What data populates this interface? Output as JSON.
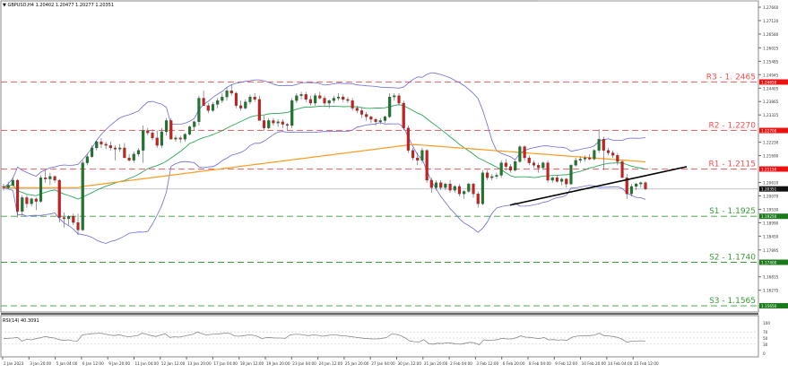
{
  "header": {
    "symbol_info": "GBPUSD,H4  1.20402 1.20477 1.20277 1.20351"
  },
  "rsi_panel": {
    "label": "RSI(14) 40.3091",
    "axis_ticks": [
      "100",
      "70",
      "50",
      "30",
      "0"
    ]
  },
  "colors": {
    "bull_candle": "#1a7a2a",
    "bear_candle": "#d21b1b",
    "wick": "#555555",
    "resistance": "#ff4d4d",
    "support": "#3a9a3a",
    "bollinger": "#6b6bdc",
    "ma_fast": "#2aa65a",
    "ma_slow": "#ff9a1f",
    "trendline": "#000000",
    "rsi_line": "#888888"
  },
  "chart_data": {
    "type": "candlestick",
    "title": "GBPUSD,H4",
    "ohlc_header": {
      "open": 1.20402,
      "high": 1.20477,
      "low": 1.20277,
      "close": 1.20351
    },
    "current_price": 1.20351,
    "price_axis_ticks": [
      "1.27660",
      "1.27120",
      "1.26580",
      "1.26025",
      "1.25485",
      "1.24945",
      "1.24405",
      "1.23865",
      "1.23325",
      "1.22230",
      "1.21690",
      "1.20610",
      "1.20070",
      "1.19530",
      "1.18990",
      "1.18450",
      "1.17895",
      "1.16815",
      "1.16275"
    ],
    "ylim": [
      1.154,
      1.279
    ],
    "time_axis_ticks": [
      "2 Jan 2023",
      "3 Jan 20:00",
      "5 Jan 04:00",
      "6 Jan 12:00",
      "9 Jan 20:00",
      "11 Jan 04:00",
      "12 Jan 12:00",
      "13 Jan 20:00",
      "17 Jan 04:00",
      "18 Jan 12:00",
      "19 Jan 20:00",
      "23 Jan 04:00",
      "24 Jan 12:00",
      "25 Jan 20:00",
      "27 Jan 04:00",
      "30 Jan 12:00",
      "31 Jan 20:00",
      "2 Feb 04:00",
      "3 Feb 12:00",
      "6 Feb 20:00",
      "8 Feb 04:00",
      "9 Feb 12:00",
      "10 Feb 20:00",
      "14 Feb 04:00",
      "15 Feb 12:00"
    ],
    "levels": [
      {
        "name": "R3",
        "label": "R3 - 1. 2465",
        "value": 1.2465,
        "axis_tag": "1.24650",
        "kind": "resistance"
      },
      {
        "name": "R2",
        "label": "R2 - 1.2270",
        "value": 1.227,
        "axis_tag": "1.22700",
        "kind": "resistance"
      },
      {
        "name": "R1",
        "label": "R1 - 1.2115",
        "value": 1.2115,
        "axis_tag": "1.21150",
        "kind": "resistance"
      },
      {
        "name": "S1",
        "label": "S1 - 1.1925",
        "value": 1.1925,
        "axis_tag": "1.19250",
        "kind": "support"
      },
      {
        "name": "S2",
        "label": "S2 - 1.1740",
        "value": 1.174,
        "axis_tag": "1.17400",
        "kind": "support"
      },
      {
        "name": "S3",
        "label": "S3 - 1.1565",
        "value": 1.1565,
        "axis_tag": "1.15650",
        "kind": "support"
      }
    ],
    "price_path": [
      [
        1.2045,
        1.2055,
        1.203,
        1.204
      ],
      [
        1.204,
        1.2065,
        1.2035,
        1.205
      ],
      [
        1.205,
        1.208,
        1.2045,
        1.207
      ],
      [
        1.207,
        1.2075,
        1.192,
        1.1945
      ],
      [
        1.1945,
        1.201,
        1.193,
        1.2
      ],
      [
        1.2,
        1.201,
        1.196,
        1.1975
      ],
      [
        1.1975,
        1.2,
        1.1965,
        1.1995
      ],
      [
        1.1995,
        1.2,
        1.195,
        1.1985
      ],
      [
        1.1985,
        1.209,
        1.198,
        1.208
      ],
      [
        1.208,
        1.211,
        1.206,
        1.2075
      ],
      [
        1.2075,
        1.21,
        1.205,
        1.2085
      ],
      [
        1.2085,
        1.209,
        1.206,
        1.207
      ],
      [
        1.207,
        1.2075,
        1.19,
        1.192
      ],
      [
        1.192,
        1.194,
        1.188,
        1.1915
      ],
      [
        1.1915,
        1.193,
        1.189,
        1.1925
      ],
      [
        1.1925,
        1.1935,
        1.189,
        1.19
      ],
      [
        1.19,
        1.1935,
        1.185,
        1.187
      ],
      [
        1.187,
        1.215,
        1.1865,
        1.214
      ],
      [
        1.214,
        1.2175,
        1.213,
        1.2165
      ],
      [
        1.2165,
        1.221,
        1.216,
        1.22
      ],
      [
        1.22,
        1.223,
        1.219,
        1.2225
      ],
      [
        1.2225,
        1.224,
        1.22,
        1.2215
      ],
      [
        1.2215,
        1.2225,
        1.2195,
        1.221
      ],
      [
        1.221,
        1.2225,
        1.219,
        1.22
      ],
      [
        1.22,
        1.221,
        1.215,
        1.2195
      ],
      [
        1.2195,
        1.2215,
        1.2185,
        1.22
      ],
      [
        1.22,
        1.222,
        1.218,
        1.216
      ],
      [
        1.216,
        1.2175,
        1.2145,
        1.215
      ],
      [
        1.215,
        1.2185,
        1.214,
        1.2175
      ],
      [
        1.2175,
        1.22,
        1.2165,
        1.219
      ],
      [
        1.219,
        1.229,
        1.214,
        1.227
      ],
      [
        1.227,
        1.228,
        1.225,
        1.226
      ],
      [
        1.226,
        1.2275,
        1.223,
        1.224
      ],
      [
        1.224,
        1.227,
        1.22,
        1.221
      ],
      [
        1.221,
        1.228,
        1.22,
        1.2265
      ],
      [
        1.2265,
        1.232,
        1.225,
        1.231
      ],
      [
        1.231,
        1.232,
        1.227,
        1.2235
      ],
      [
        1.2235,
        1.225,
        1.2225,
        1.224
      ],
      [
        1.224,
        1.225,
        1.222,
        1.2235
      ],
      [
        1.2235,
        1.226,
        1.2225,
        1.2255
      ],
      [
        1.2255,
        1.229,
        1.225,
        1.2285
      ],
      [
        1.2285,
        1.231,
        1.227,
        1.2305
      ],
      [
        1.2305,
        1.241,
        1.229,
        1.24
      ],
      [
        1.24,
        1.243,
        1.2385,
        1.237
      ],
      [
        1.237,
        1.238,
        1.234,
        1.235
      ],
      [
        1.235,
        1.2385,
        1.2345,
        1.2375
      ],
      [
        1.2375,
        1.24,
        1.236,
        1.239
      ],
      [
        1.239,
        1.242,
        1.238,
        1.2405
      ],
      [
        1.2405,
        1.2445,
        1.239,
        1.243
      ],
      [
        1.243,
        1.2455,
        1.241,
        1.242
      ],
      [
        1.242,
        1.2425,
        1.236,
        1.237
      ],
      [
        1.237,
        1.239,
        1.235,
        1.236
      ],
      [
        1.236,
        1.2395,
        1.2355,
        1.2385
      ],
      [
        1.2385,
        1.2415,
        1.2375,
        1.2405
      ],
      [
        1.2405,
        1.242,
        1.2385,
        1.2395
      ],
      [
        1.2395,
        1.241,
        1.234,
        1.231
      ],
      [
        1.231,
        1.233,
        1.227,
        1.228
      ],
      [
        1.228,
        1.232,
        1.2275,
        1.231
      ],
      [
        1.231,
        1.232,
        1.229,
        1.23
      ],
      [
        1.23,
        1.2315,
        1.2285,
        1.2305
      ],
      [
        1.2305,
        1.2315,
        1.228,
        1.2295
      ],
      [
        1.2295,
        1.23,
        1.227,
        1.229
      ],
      [
        1.229,
        1.24,
        1.228,
        1.239
      ],
      [
        1.239,
        1.242,
        1.238,
        1.241
      ],
      [
        1.241,
        1.2425,
        1.2395,
        1.2415
      ],
      [
        1.2415,
        1.2425,
        1.2385,
        1.2395
      ],
      [
        1.2395,
        1.241,
        1.237,
        1.238
      ],
      [
        1.238,
        1.242,
        1.237,
        1.241
      ],
      [
        1.241,
        1.2425,
        1.2395,
        1.24
      ],
      [
        1.24,
        1.241,
        1.237,
        1.238
      ],
      [
        1.238,
        1.2395,
        1.236,
        1.239
      ],
      [
        1.239,
        1.241,
        1.238,
        1.24
      ],
      [
        1.24,
        1.242,
        1.239,
        1.2405
      ],
      [
        1.2405,
        1.2415,
        1.2385,
        1.2395
      ],
      [
        1.2395,
        1.2405,
        1.238,
        1.239
      ],
      [
        1.239,
        1.24,
        1.235,
        1.236
      ],
      [
        1.236,
        1.237,
        1.234,
        1.235
      ],
      [
        1.235,
        1.236,
        1.232,
        1.2335
      ],
      [
        1.2335,
        1.2345,
        1.231,
        1.2325
      ],
      [
        1.2325,
        1.233,
        1.23,
        1.2315
      ],
      [
        1.2315,
        1.232,
        1.229,
        1.2305
      ],
      [
        1.2305,
        1.232,
        1.2295,
        1.231
      ],
      [
        1.231,
        1.233,
        1.23,
        1.2325
      ],
      [
        1.2325,
        1.242,
        1.232,
        1.2405
      ],
      [
        1.2405,
        1.242,
        1.239,
        1.241
      ],
      [
        1.241,
        1.242,
        1.237,
        1.238
      ],
      [
        1.238,
        1.239,
        1.227,
        1.228
      ],
      [
        1.228,
        1.229,
        1.218,
        1.219
      ],
      [
        1.219,
        1.22,
        1.215,
        1.216
      ],
      [
        1.216,
        1.218,
        1.213,
        1.215
      ],
      [
        1.215,
        1.22,
        1.214,
        1.219
      ],
      [
        1.219,
        1.2195,
        1.206,
        1.207
      ],
      [
        1.207,
        1.208,
        1.202,
        1.204
      ],
      [
        1.204,
        1.207,
        1.203,
        1.206
      ],
      [
        1.206,
        1.207,
        1.203,
        1.204
      ],
      [
        1.204,
        1.206,
        1.203,
        1.2055
      ],
      [
        1.2055,
        1.207,
        1.202,
        1.203
      ],
      [
        1.203,
        1.205,
        1.202,
        1.2045
      ],
      [
        1.2045,
        1.2055,
        1.2005,
        1.2015
      ],
      [
        1.2015,
        1.203,
        1.1995,
        1.2025
      ],
      [
        1.2025,
        1.206,
        1.202,
        1.2055
      ],
      [
        1.2055,
        1.206,
        1.2,
        1.2015
      ],
      [
        1.2015,
        1.2025,
        1.196,
        1.1975
      ],
      [
        1.1975,
        1.211,
        1.197,
        1.21
      ],
      [
        1.21,
        1.211,
        1.207,
        1.208
      ],
      [
        1.208,
        1.2095,
        1.207,
        1.2085
      ],
      [
        1.2085,
        1.21,
        1.2075,
        1.209
      ],
      [
        1.209,
        1.215,
        1.208,
        1.214
      ],
      [
        1.214,
        1.2155,
        1.211,
        1.2125
      ],
      [
        1.2125,
        1.2135,
        1.21,
        1.211
      ],
      [
        1.211,
        1.215,
        1.2105,
        1.2145
      ],
      [
        1.2145,
        1.221,
        1.214,
        1.2205
      ],
      [
        1.2205,
        1.221,
        1.215,
        1.216
      ],
      [
        1.216,
        1.217,
        1.213,
        1.214
      ],
      [
        1.214,
        1.215,
        1.212,
        1.213
      ],
      [
        1.213,
        1.214,
        1.21,
        1.212
      ],
      [
        1.212,
        1.2145,
        1.211,
        1.214
      ],
      [
        1.214,
        1.215,
        1.206,
        1.207
      ],
      [
        1.207,
        1.2085,
        1.206,
        1.208
      ],
      [
        1.208,
        1.209,
        1.206,
        1.2065
      ],
      [
        1.2065,
        1.208,
        1.205,
        1.2075
      ],
      [
        1.2075,
        1.208,
        1.204,
        1.2055
      ],
      [
        1.2055,
        1.2135,
        1.205,
        1.213
      ],
      [
        1.213,
        1.216,
        1.2125,
        1.215
      ],
      [
        1.215,
        1.2165,
        1.214,
        1.2155
      ],
      [
        1.2155,
        1.217,
        1.2145,
        1.216
      ],
      [
        1.216,
        1.2175,
        1.215,
        1.2155
      ],
      [
        1.2155,
        1.2195,
        1.215,
        1.219
      ],
      [
        1.219,
        1.2275,
        1.218,
        1.2235
      ],
      [
        1.2235,
        1.2245,
        1.211,
        1.219
      ],
      [
        1.219,
        1.22,
        1.217,
        1.218
      ],
      [
        1.218,
        1.219,
        1.216,
        1.217
      ],
      [
        1.217,
        1.218,
        1.213,
        1.2145
      ],
      [
        1.2145,
        1.215,
        1.211,
        1.208
      ],
      [
        1.208,
        1.2095,
        1.1995,
        1.2015
      ],
      [
        1.2015,
        1.2055,
        1.2005,
        1.2045
      ],
      [
        1.2045,
        1.206,
        1.203,
        1.2055
      ],
      [
        1.2055,
        1.2065,
        1.204,
        1.206
      ],
      [
        1.206,
        1.2065,
        1.203,
        1.2035
      ]
    ],
    "trendline": {
      "from": [
        1.197,
        "6 Feb 20:00"
      ],
      "to": [
        1.2128,
        "15 Feb 12:00+"
      ]
    },
    "rsi": {
      "ylim": [
        0,
        100
      ],
      "levels": [
        70,
        50,
        30
      ],
      "values": [
        48,
        49,
        50,
        52,
        40,
        46,
        44,
        48,
        51,
        55,
        52,
        50,
        45,
        42,
        44,
        41,
        40,
        60,
        62,
        64,
        65,
        66,
        63,
        60,
        58,
        61,
        57,
        54,
        56,
        58,
        66,
        62,
        58,
        55,
        60,
        64,
        52,
        54,
        53,
        56,
        59,
        62,
        70,
        64,
        60,
        62,
        63,
        64,
        66,
        65,
        57,
        56,
        58,
        60,
        59,
        55,
        48,
        52,
        51,
        50,
        50,
        49,
        60,
        62,
        62,
        60,
        58,
        60,
        59,
        56,
        58,
        60,
        60,
        58,
        57,
        55,
        53,
        51,
        49,
        48,
        47,
        47,
        49,
        52,
        63,
        62,
        58,
        50,
        40,
        38,
        37,
        45,
        32,
        30,
        33,
        32,
        34,
        33,
        31,
        30,
        33,
        36,
        34,
        28,
        44,
        42,
        43,
        45,
        49,
        47,
        47,
        51,
        57,
        53,
        52,
        50,
        48,
        52,
        44,
        45,
        43,
        44,
        42,
        52,
        56,
        57,
        58,
        58,
        60,
        66,
        58,
        57,
        55,
        52,
        46,
        36,
        40,
        40,
        41,
        40
      ]
    }
  }
}
